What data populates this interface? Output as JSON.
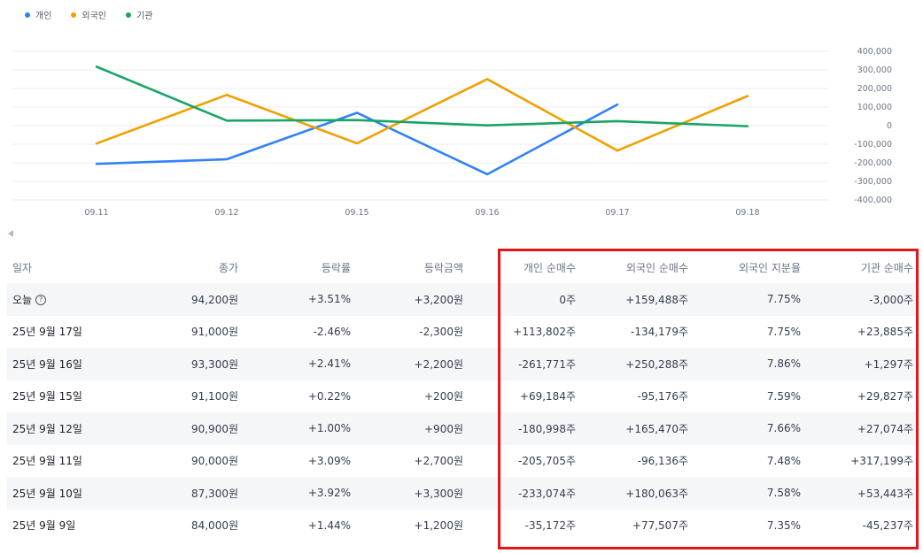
{
  "chart_data": {
    "type": "line",
    "categories": [
      "09.11",
      "09.12",
      "09.15",
      "09.16",
      "09.17",
      "09.18"
    ],
    "series": [
      {
        "name": "개인",
        "color": "#3182f6",
        "values": [
          -205705,
          -180998,
          69184,
          -261771,
          113802,
          null
        ]
      },
      {
        "name": "외국인",
        "color": "#f0a000",
        "values": [
          -96136,
          165470,
          -95176,
          250288,
          -134179,
          159488
        ]
      },
      {
        "name": "기관",
        "color": "#17a566",
        "values": [
          317199,
          27074,
          29827,
          1297,
          23885,
          -3000
        ]
      }
    ],
    "yticks": [
      "400,000",
      "300,000",
      "200,000",
      "100,000",
      "0",
      "-100,000",
      "-200,000",
      "-300,000",
      "-400,000"
    ],
    "ylim": [
      -400000,
      400000
    ],
    "grid": true,
    "legend": "top-left"
  },
  "table": {
    "headers": [
      "일자",
      "종가",
      "등락률",
      "등락금액",
      "개인 순매수",
      "외국인 순매수",
      "외국인 지분율",
      "기관 순매수"
    ],
    "help_icon": "?",
    "rows": [
      [
        "오늘",
        "94,200원",
        "+3.51%",
        "+3,200원",
        "0주",
        "+159,488주",
        "7.75%",
        "-3,000주"
      ],
      [
        "25년 9월 17일",
        "91,000원",
        "-2.46%",
        "-2,300원",
        "+113,802주",
        "-134,179주",
        "7.75%",
        "+23,885주"
      ],
      [
        "25년 9월 16일",
        "93,300원",
        "+2.41%",
        "+2,200원",
        "-261,771주",
        "+250,288주",
        "7.86%",
        "+1,297주"
      ],
      [
        "25년 9월 15일",
        "91,100원",
        "+0.22%",
        "+200원",
        "+69,184주",
        "-95,176주",
        "7.59%",
        "+29,827주"
      ],
      [
        "25년 9월 12일",
        "90,900원",
        "+1.00%",
        "+900원",
        "-180,998주",
        "+165,470주",
        "7.66%",
        "+27,074주"
      ],
      [
        "25년 9월 11일",
        "90,000원",
        "+3.09%",
        "+2,700원",
        "-205,705주",
        "-96,136주",
        "7.48%",
        "+317,199주"
      ],
      [
        "25년 9월 10일",
        "87,300원",
        "+3.92%",
        "+3,300원",
        "-233,074주",
        "+180,063주",
        "7.58%",
        "+53,443주"
      ],
      [
        "25년 9월 9일",
        "84,000원",
        "+1.44%",
        "+1,200원",
        "-35,172주",
        "+77,507주",
        "7.35%",
        "-45,237주"
      ]
    ]
  },
  "colors": {
    "up": "#e42939",
    "down": "#3182f6",
    "highlight": "#e3161c"
  }
}
